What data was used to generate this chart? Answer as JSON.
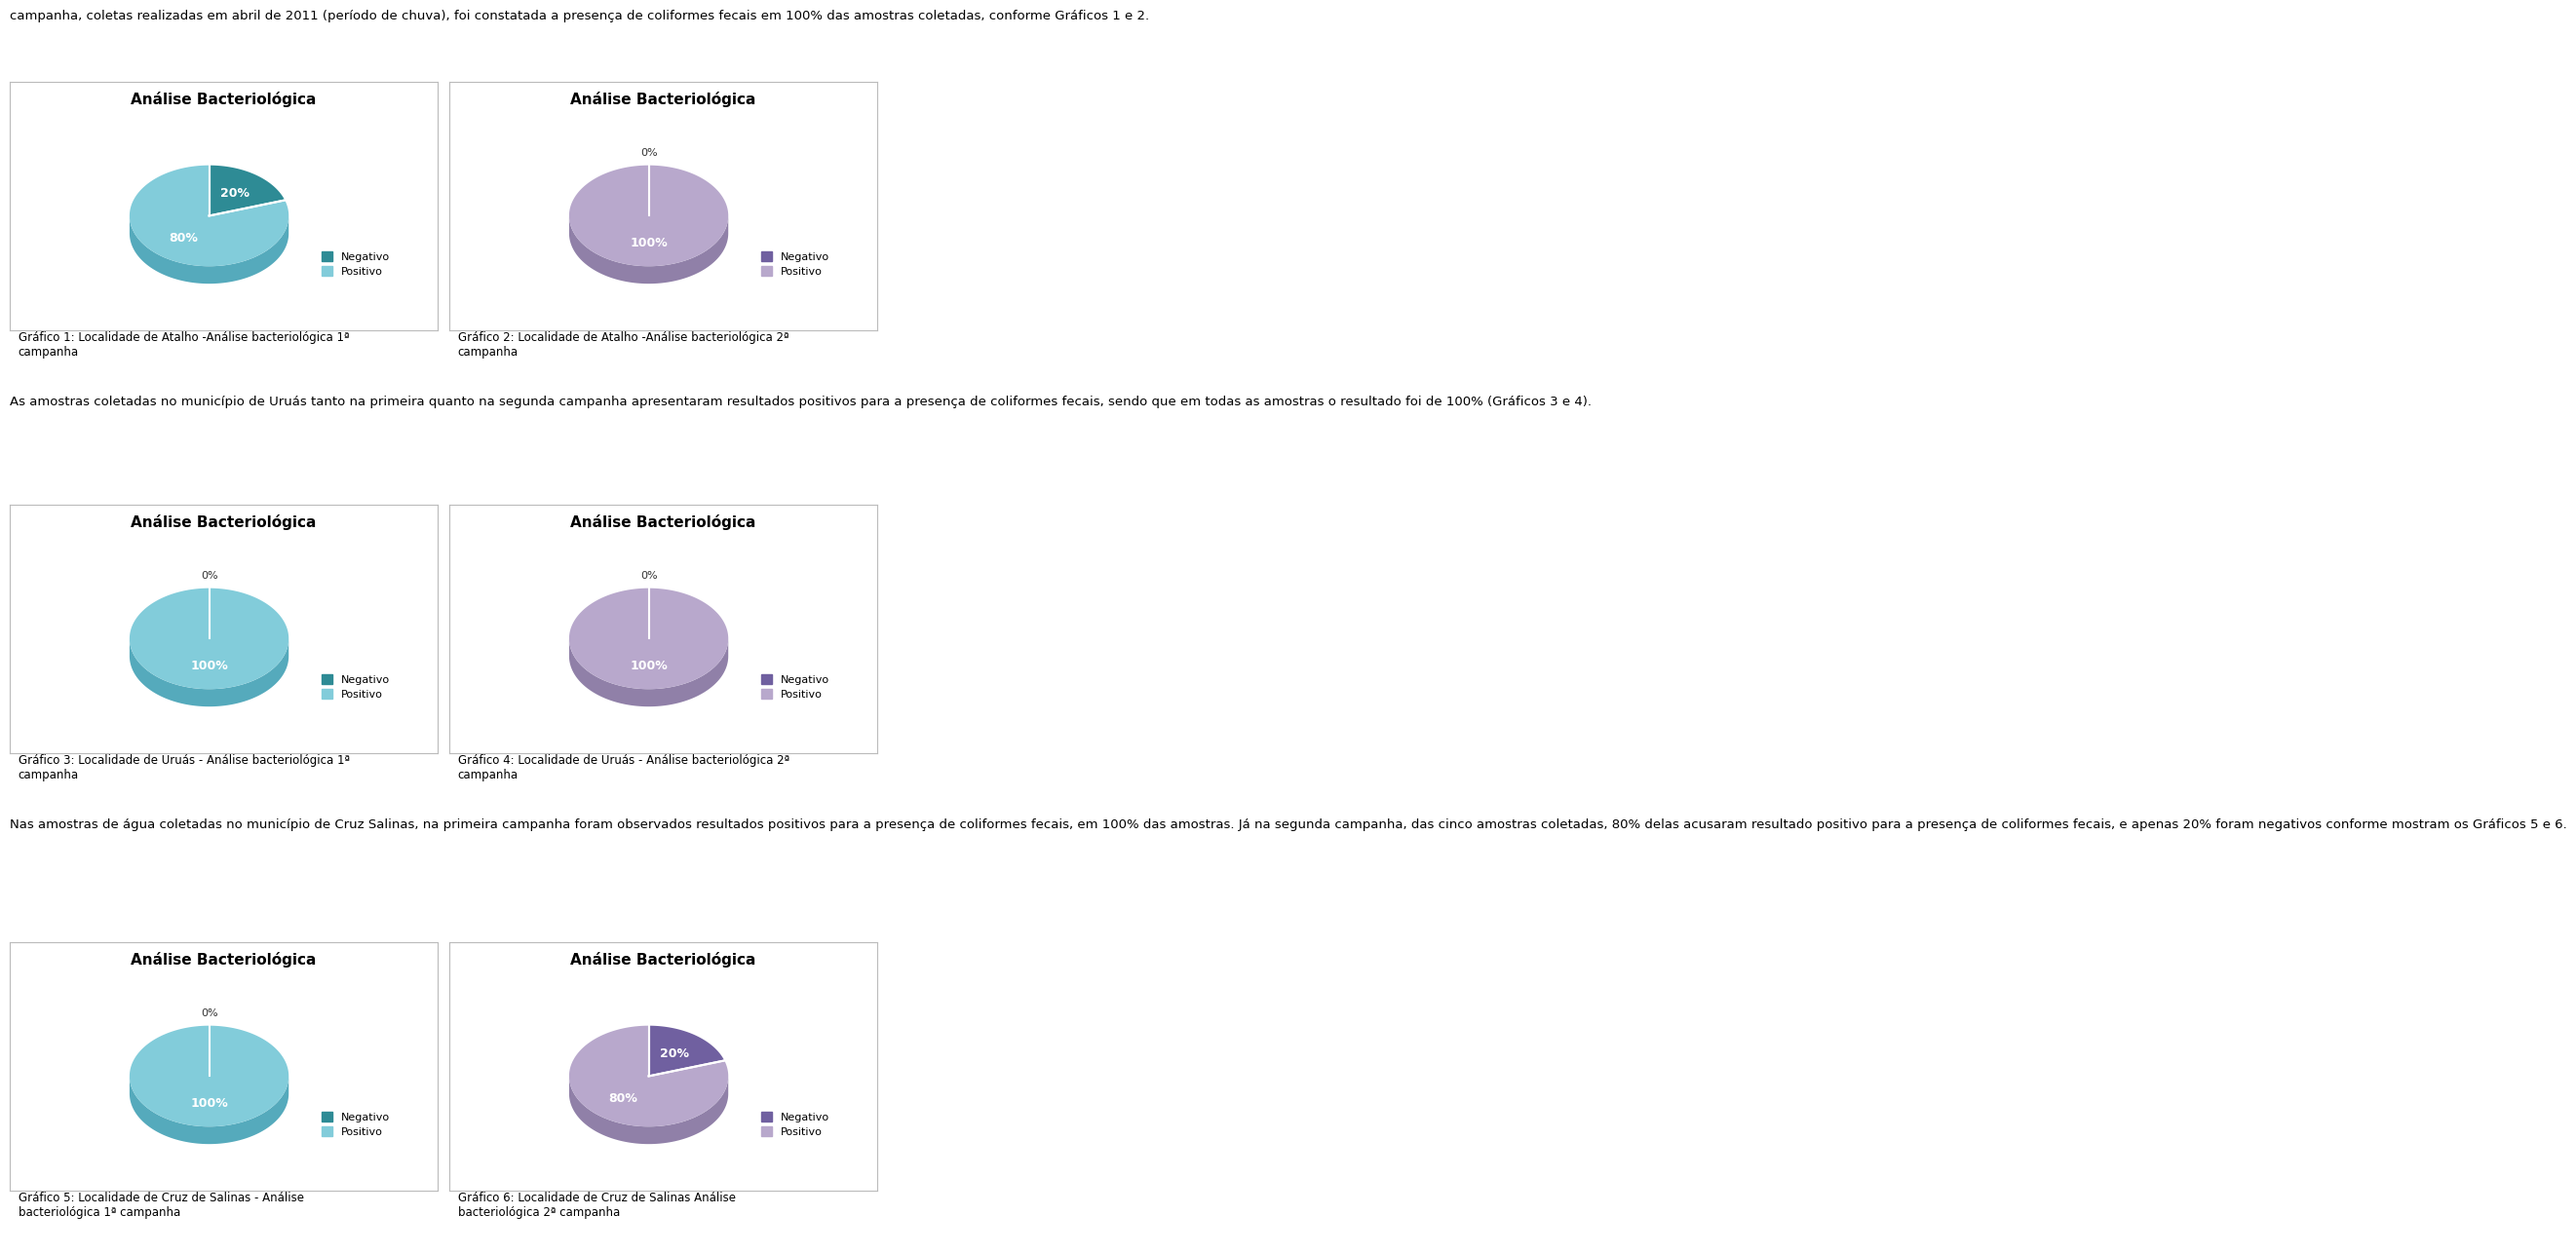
{
  "text_top": "campanha, coletas realizadas em abril de 2011 (período de chuva), foi constatada a presença de coliformes fecais em 100% das amostras coletadas, conforme Gráficos 1 e 2.",
  "text_middle": "As amostras coletadas no município de Uruás tanto na primeira quanto na segunda campanha apresentaram resultados positivos para a presença de coliformes fecais, sendo que em todas as amostras o resultado foi de 100% (Gráficos 3 e 4).",
  "text_bottom": "Nas amostras de água coletadas no município de Cruz Salinas, na primeira campanha foram observados resultados positivos para a presença de coliformes fecais, em 100% das amostras. Já na segunda campanha, das cinco amostras coletadas, 80% delas acusaram resultado positivo para a presença de coliformes fecais, e apenas 20% foram negativos conforme mostram os Gráficos 5 e 6.",
  "charts": [
    {
      "title": "Análise Bacteriológica",
      "values": [
        20,
        80
      ],
      "labels": [
        "20%",
        "80%"
      ],
      "legend_labels": [
        "Negativo",
        "Positivo"
      ],
      "color_neg_top": "#2E8B95",
      "color_pos_top": "#82CCDA",
      "color_neg_side": "#1A6570",
      "color_pos_side": "#55AABC",
      "caption": "Gráfico 1: Localidade de Atalho -Análise bacteriológica 1ª\ncampanha"
    },
    {
      "title": "Análise Bacteriológica",
      "values": [
        0,
        100
      ],
      "labels": [
        "0%",
        "100%"
      ],
      "legend_labels": [
        "Negativo",
        "Positivo"
      ],
      "color_neg_top": "#7060A0",
      "color_pos_top": "#B8A8CC",
      "color_neg_side": "#504070",
      "color_pos_side": "#9080A8",
      "caption": "Gráfico 2: Localidade de Atalho -Análise bacteriológica 2ª\ncampanha"
    },
    {
      "title": "Análise Bacteriológica",
      "values": [
        0,
        100
      ],
      "labels": [
        "0%",
        "100%"
      ],
      "legend_labels": [
        "Negativo",
        "Positivo"
      ],
      "color_neg_top": "#2E8B95",
      "color_pos_top": "#82CCDA",
      "color_neg_side": "#1A6570",
      "color_pos_side": "#55AABC",
      "caption": "Gráfico 3: Localidade de Uruás - Análise bacteriológica 1ª\ncampanha"
    },
    {
      "title": "Análise Bacteriológica",
      "values": [
        0,
        100
      ],
      "labels": [
        "0%",
        "100%"
      ],
      "legend_labels": [
        "Negativo",
        "Positivo"
      ],
      "color_neg_top": "#7060A0",
      "color_pos_top": "#B8A8CC",
      "color_neg_side": "#504070",
      "color_pos_side": "#9080A8",
      "caption": "Gráfico 4: Localidade de Uruás - Análise bacteriológica 2ª\ncampanha"
    },
    {
      "title": "Análise Bacteriológica",
      "values": [
        0,
        100
      ],
      "labels": [
        "0%",
        "100%"
      ],
      "legend_labels": [
        "Negativo",
        "Positivo"
      ],
      "color_neg_top": "#2E8B95",
      "color_pos_top": "#82CCDA",
      "color_neg_side": "#1A6570",
      "color_pos_side": "#55AABC",
      "caption": "Gráfico 5: Localidade de Cruz de Salinas - Análise\nbacteriológica 1ª campanha"
    },
    {
      "title": "Análise Bacteriológica",
      "values": [
        20,
        80
      ],
      "labels": [
        "20%",
        "80%"
      ],
      "legend_labels": [
        "Negativo",
        "Positivo"
      ],
      "color_neg_top": "#7060A0",
      "color_pos_top": "#B8A8CC",
      "color_neg_side": "#504070",
      "color_pos_side": "#9080A8",
      "caption": "Gráfico 6: Localidade de Cruz de Salinas Análise\nbacteriológica 2ª campanha"
    }
  ]
}
